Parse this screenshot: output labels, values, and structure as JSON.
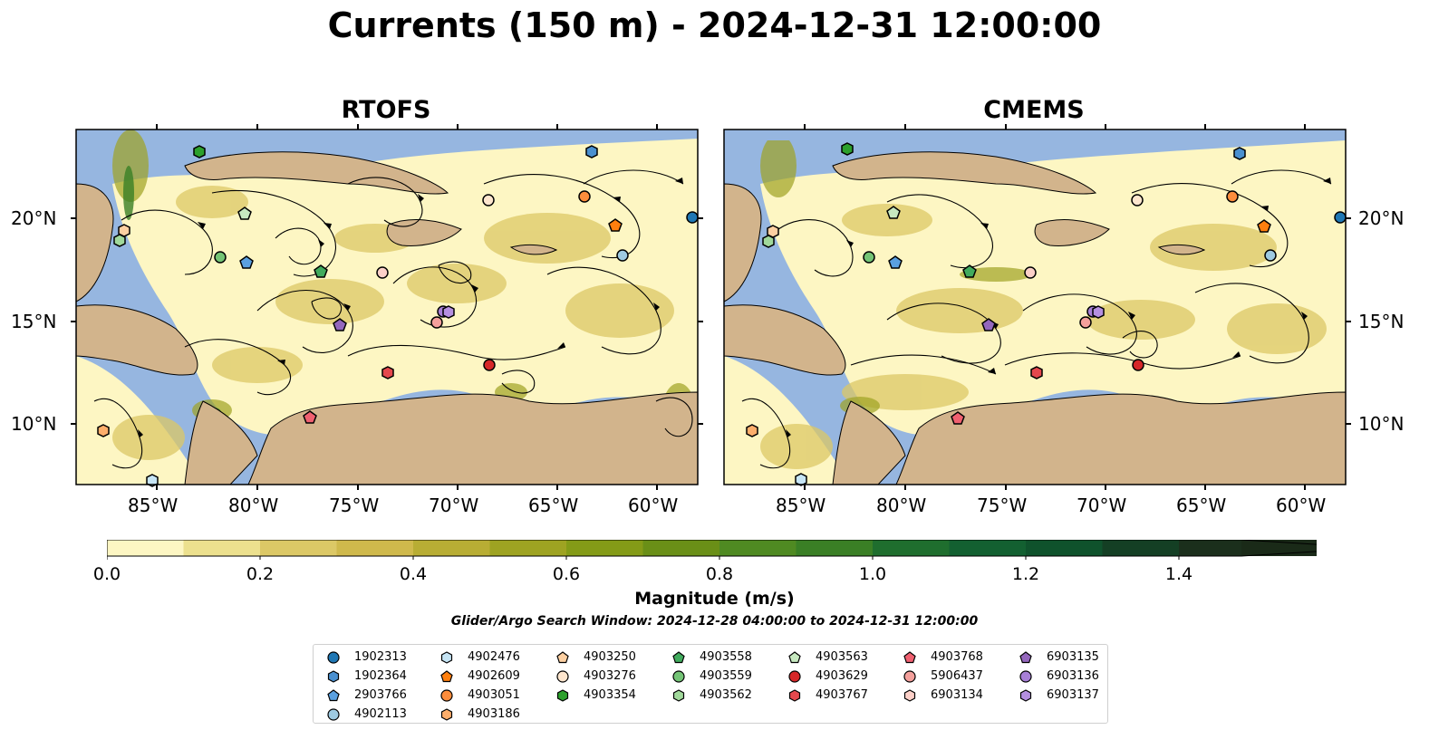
{
  "title": "Currents (150 m) - 2024-12-31 12:00:00",
  "panels": [
    {
      "title": "RTOFS"
    },
    {
      "title": "CMEMS"
    }
  ],
  "axes": {
    "lon_ticks": [
      "85°W",
      "80°W",
      "75°W",
      "70°W",
      "65°W",
      "60°W"
    ],
    "lat_ticks": [
      "20°N",
      "15°N",
      "10°N"
    ]
  },
  "colorbar": {
    "label": "Magnitude (m/s)",
    "ticks": [
      "0.0",
      "0.2",
      "0.4",
      "0.6",
      "0.8",
      "1.0",
      "1.2",
      "1.4"
    ],
    "colors": [
      "#fdf6c3",
      "#ece08e",
      "#dcc866",
      "#cfb94c",
      "#b8ad34",
      "#9ea322",
      "#849b17",
      "#6a8f17",
      "#4f8a22",
      "#3a7f25",
      "#1f6e2e",
      "#136031",
      "#0f522c",
      "#143f24",
      "#1b2f1c",
      "#1a2a18"
    ]
  },
  "search_window": "Glider/Argo Search Window: 2024-12-28 04:00:00 to 2024-12-31 12:00:00",
  "colors": {
    "ocean": "#96b6e0",
    "land": "#d2b48c",
    "current_low": "#fdf6c3",
    "current_high": "#1f6e2e"
  },
  "legend": [
    {
      "id": "1902313",
      "marker": "circle",
      "color": "#1f77b4"
    },
    {
      "id": "1902364",
      "marker": "hexagon",
      "color": "#4a90d0"
    },
    {
      "id": "2903766",
      "marker": "pentagon",
      "color": "#5aa0e0"
    },
    {
      "id": "4902113",
      "marker": "circle",
      "color": "#9ecae1"
    },
    {
      "id": "4902476",
      "marker": "hexagon",
      "color": "#c6e5f5"
    },
    {
      "id": "4902609",
      "marker": "pentagon",
      "color": "#ff7f0e"
    },
    {
      "id": "4903051",
      "marker": "circle",
      "color": "#fd8d3c"
    },
    {
      "id": "4903186",
      "marker": "hexagon",
      "color": "#fdae6b"
    },
    {
      "id": "4903250",
      "marker": "pentagon",
      "color": "#fdd0a2"
    },
    {
      "id": "4903276",
      "marker": "circle",
      "color": "#fee6ce"
    },
    {
      "id": "4903354",
      "marker": "hexagon",
      "color": "#2ca02c"
    },
    {
      "id": "4903558",
      "marker": "pentagon",
      "color": "#41ab5d"
    },
    {
      "id": "4903559",
      "marker": "circle",
      "color": "#74c476"
    },
    {
      "id": "4903562",
      "marker": "hexagon",
      "color": "#a1d99b"
    },
    {
      "id": "4903563",
      "marker": "pentagon",
      "color": "#c7e9c0"
    },
    {
      "id": "4903629",
      "marker": "circle",
      "color": "#d62728"
    },
    {
      "id": "4903767",
      "marker": "hexagon",
      "color": "#e5484d"
    },
    {
      "id": "4903768",
      "marker": "pentagon",
      "color": "#f06070"
    },
    {
      "id": "5906437",
      "marker": "circle",
      "color": "#f4a09c"
    },
    {
      "id": "6903134",
      "marker": "hexagon",
      "color": "#fcd0c8"
    },
    {
      "id": "6903135",
      "marker": "pentagon",
      "color": "#9467bd"
    },
    {
      "id": "6903136",
      "marker": "circle",
      "color": "#a77fd6"
    },
    {
      "id": "6903137",
      "marker": "hexagon",
      "color": "#b58fe0"
    }
  ]
}
